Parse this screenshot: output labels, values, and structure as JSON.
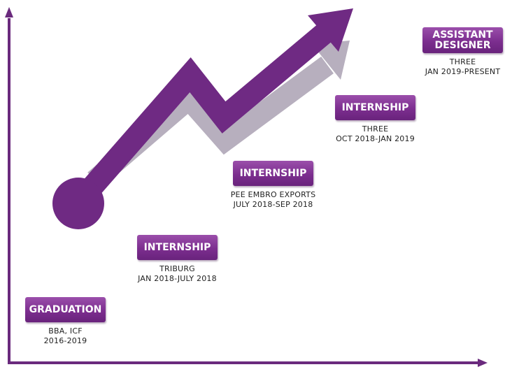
{
  "colors": {
    "axis": "#6a2a7d",
    "arrow": "#6f2a83",
    "arrow_shadow": "#b7afbe",
    "badge": "#7c2e8f"
  },
  "milestones": [
    {
      "title": "GRADUATION",
      "line1": "BBA, ICF",
      "line2": "2016-2019"
    },
    {
      "title": "INTERNSHIP",
      "line1": "TRIBURG",
      "line2": "JAN 2018-JULY 2018"
    },
    {
      "title": "INTERNSHIP",
      "line1": "PEE EMBRO EXPORTS",
      "line2": "JULY 2018-SEP 2018"
    },
    {
      "title": "INTERNSHIP",
      "line1": "THREE",
      "line2": "OCT 2018-JAN 2019"
    },
    {
      "title_line1": "ASSISTANT",
      "title_line2": "DESIGNER",
      "line1": "THREE",
      "line2": "JAN 2019-PRESENT"
    }
  ]
}
